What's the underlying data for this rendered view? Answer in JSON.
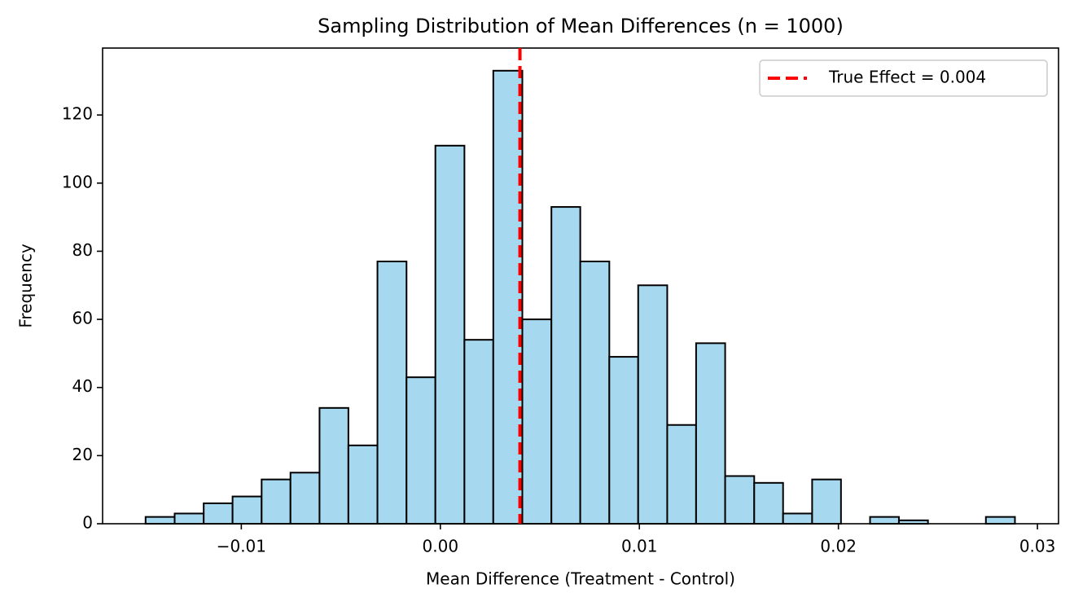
{
  "chart_data": {
    "type": "histogram",
    "title": "Sampling Distribution of Mean Differences (n = 1000)",
    "xlabel": "Mean Difference (Treatment - Control)",
    "ylabel": "Frequency",
    "color": "#a6d8ef",
    "edgecolor": "#000000",
    "bins": [
      -0.01481,
      -0.01335,
      -0.01189,
      -0.01044,
      -0.00898,
      -0.00753,
      -0.00607,
      -0.00462,
      -0.00316,
      -0.0017,
      -0.00025,
      0.00121,
      0.00266,
      0.00412,
      0.00558,
      0.00703,
      0.00849,
      0.00994,
      0.0114,
      0.01285,
      0.01431,
      0.01577,
      0.01722,
      0.01868,
      0.02013,
      0.02159,
      0.02304,
      0.0245,
      0.02596,
      0.02741,
      0.02887
    ],
    "values": [
      2,
      3,
      6,
      8,
      13,
      15,
      34,
      23,
      77,
      43,
      111,
      54,
      133,
      60,
      93,
      77,
      49,
      70,
      29,
      53,
      14,
      12,
      3,
      13,
      0,
      2,
      1,
      0,
      0,
      2
    ],
    "vlines": [
      {
        "x": 0.004,
        "label": "True Effect = 0.004",
        "color": "#ff0000",
        "style": "dashed"
      }
    ],
    "legend": "upper right",
    "xlim": [
      -0.01697,
      0.03106
    ],
    "ylim": [
      0,
      139.65
    ],
    "xticks": [
      {
        "value": -0.01,
        "label": "−0.01"
      },
      {
        "value": 0,
        "label": "0.00"
      },
      0.01,
      0.02,
      0.03
    ],
    "yticks": [
      0,
      20,
      40,
      60,
      80,
      100,
      120
    ]
  }
}
